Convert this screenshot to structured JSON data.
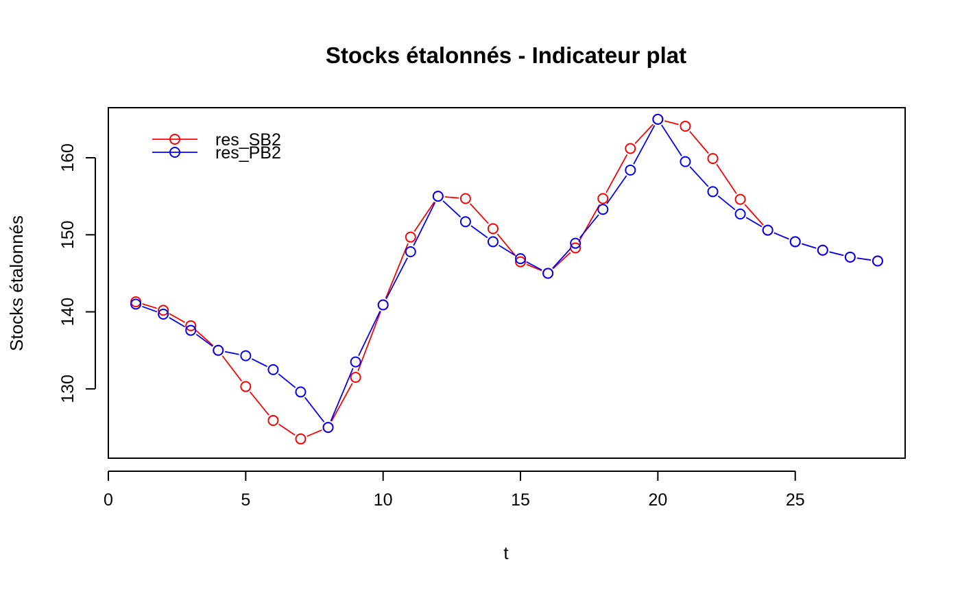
{
  "chart_data": {
    "type": "line",
    "title": "Stocks étalonnés - Indicateur plat",
    "xlabel": "t",
    "ylabel": "Stocks étalonnés",
    "xlim": [
      0.0,
      29.0
    ],
    "ylim": [
      121.0,
      166.5
    ],
    "xticks": [
      0,
      5,
      10,
      15,
      20,
      25
    ],
    "yticks": [
      130,
      140,
      150,
      160
    ],
    "grid": false,
    "legend_position": "top-left",
    "x": [
      1,
      2,
      3,
      4,
      5,
      6,
      7,
      8,
      9,
      10,
      11,
      12,
      13,
      14,
      15,
      16,
      17,
      18,
      19,
      20,
      21,
      22,
      23,
      24,
      25,
      26,
      27,
      28
    ],
    "series": [
      {
        "name": "res_SB2",
        "color": "#ff0000",
        "values": [
          141.3,
          140.2,
          138.2,
          135.0,
          130.3,
          125.9,
          123.5,
          125.0,
          131.5,
          140.9,
          149.7,
          155.0,
          154.7,
          150.8,
          146.5,
          145.0,
          148.3,
          154.7,
          161.2,
          165.0,
          164.1,
          159.9,
          154.6,
          150.6,
          149.1,
          148.0,
          147.1,
          146.6
        ]
      },
      {
        "name": "res_PB2",
        "color": "#0000ff",
        "values": [
          141.0,
          139.7,
          137.6,
          135.0,
          134.3,
          132.5,
          129.6,
          125.0,
          133.5,
          140.9,
          147.8,
          155.0,
          151.7,
          149.1,
          146.9,
          145.0,
          148.9,
          153.3,
          158.4,
          165.0,
          159.5,
          155.6,
          152.7,
          150.6,
          149.1,
          148.0,
          147.1,
          146.6
        ]
      }
    ]
  }
}
